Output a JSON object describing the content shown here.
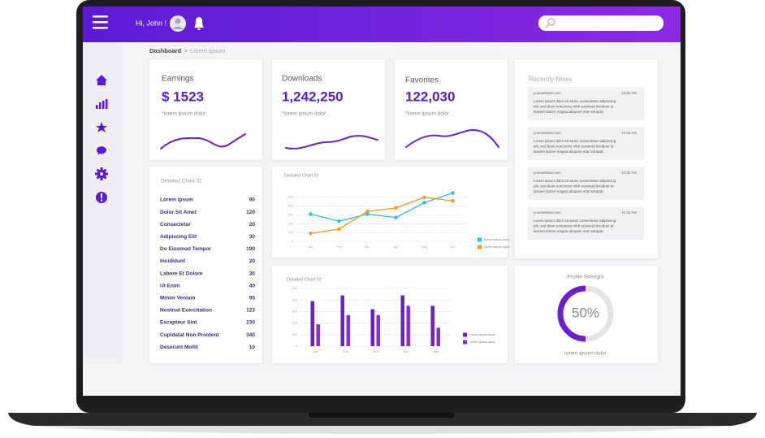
{
  "header": {
    "greeting": "Hi, John !"
  },
  "breadcrumb": {
    "root": "Dashboard",
    "separator": ">",
    "page": "Lorem ipsum"
  },
  "stats": [
    {
      "label": "Earnings",
      "value": "$ 1523",
      "note": "*lorem ipsum dolor"
    },
    {
      "label": "Downloads",
      "value": "1,242,250",
      "note": "*lorem ipsum dolor"
    },
    {
      "label": "Favorites",
      "value": "122,030",
      "note": "*lorem ipsum dolor"
    }
  ],
  "news": {
    "title": "Recently News",
    "items": [
      {
        "source": "yourwebsite.com",
        "time": "10:30 AM",
        "lines": [
          "Lorem ipsum dolor sit amet, consectetur adipiscing",
          "elit, sed diam nonummy nibh euismod tincidunt ut",
          "laoreet dolore magna aliquam erat volutpat."
        ]
      },
      {
        "source": "yourwebsite.com",
        "time": "10:45 AM",
        "lines": [
          "Lorem ipsum dolor sit amet, consectetur adipiscing",
          "elit, sed diam nonummy nibh euismod tincidunt ut",
          "laoreet dolore magna aliquam erat volutpat."
        ]
      },
      {
        "source": "yourwebsite.com",
        "time": "10:30 AM",
        "lines": [
          "Lorem ipsum dolor sit amet, consectetur adipiscing",
          "elit, sed diam nonummy nibh euismod tincidunt ut",
          "laoreet dolore magna aliquam erat volutpat."
        ]
      },
      {
        "source": "yourwebsite.com",
        "time": "11:30 AM",
        "lines": [
          "Lorem ipsum dolor sit amet, consectetur adipiscing",
          "elit, sed diam nonummy nibh euismod tincidunt ut",
          "laoreet dolore magna aliquam erat volutpat."
        ]
      }
    ]
  },
  "list": {
    "title": "Detailed Chart 02",
    "rows": [
      [
        "Lorem ipsum",
        90
      ],
      [
        "Dolor Sit Amet",
        120
      ],
      [
        "Consectetur",
        20
      ],
      [
        "Adipiscing Elit",
        30
      ],
      [
        "Do Eiusmod Tempor",
        190
      ],
      [
        "Incididunt",
        20
      ],
      [
        "Labore Et Dolore",
        30
      ],
      [
        "Ut Enim",
        40
      ],
      [
        "Minim Veniam",
        95
      ],
      [
        "Nostrud Exercitation",
        123
      ],
      [
        "Excepteur Sint",
        230
      ],
      [
        "Cupidatat Non Proident",
        340
      ],
      [
        "Deserunt Mollit",
        10
      ]
    ]
  },
  "chart_data": [
    {
      "type": "line",
      "title": "Detailed Chart 01",
      "categories": [
        "Jan",
        "Feb",
        "Mar",
        "Apr",
        "May",
        "Jun"
      ],
      "series": [
        {
          "name": "Lorem ipsum dolor",
          "color": "#1fcad6",
          "values": [
            310,
            230,
            310,
            270,
            440,
            550
          ]
        },
        {
          "name": "Lorem ipsum dolor",
          "color": "#f39a1b",
          "values": [
            90,
            140,
            340,
            380,
            500,
            460
          ]
        }
      ],
      "ylim": [
        0,
        600
      ],
      "yticks": [
        0,
        100,
        200,
        300,
        400,
        500
      ],
      "grid": true
    },
    {
      "type": "bar",
      "title": "Detailed Chart 02",
      "categories": [
        "Jan",
        "Feb",
        "Mar",
        "Apr",
        "May"
      ],
      "series": [
        {
          "name": "Lorem ipsum dolor",
          "color": "#6a1fd0",
          "values": [
            390,
            440,
            320,
            440,
            350
          ]
        },
        {
          "name": "Lorem ipsum dolor",
          "color": "#8a2fcf",
          "values": [
            190,
            270,
            270,
            350,
            160
          ]
        }
      ],
      "ylim": [
        0,
        500
      ],
      "yticks": [
        0,
        100,
        200,
        300,
        400,
        500
      ],
      "grid": true
    },
    {
      "type": "donut",
      "title": "Profile Strenght",
      "value": 50,
      "value_label": "50%",
      "max": 100,
      "caption": "lorem ipsum dolor",
      "color": "#6a1fd0"
    }
  ]
}
